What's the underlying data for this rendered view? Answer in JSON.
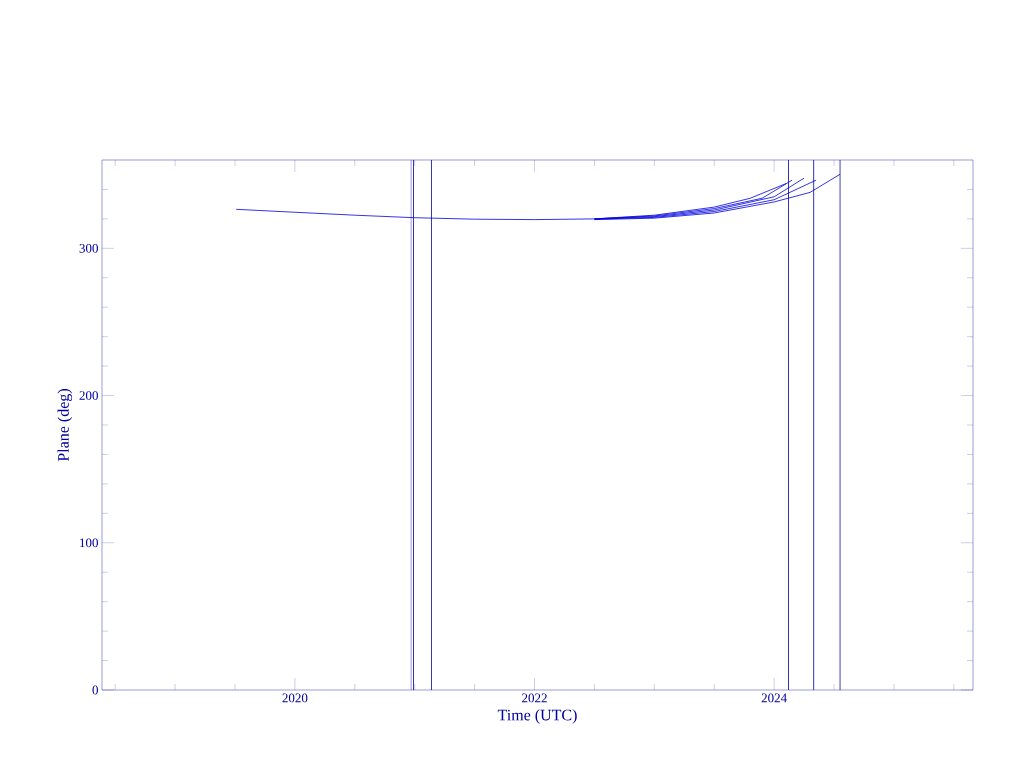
{
  "chart_data": {
    "type": "line",
    "xlabel": "Time (UTC)",
    "ylabel": "Plane (deg)",
    "xlim": [
      2018.39,
      2025.66
    ],
    "ylim": [
      0,
      360
    ],
    "xticks": [
      {
        "value": 2018.5,
        "label": null
      },
      {
        "value": 2019,
        "label": null
      },
      {
        "value": 2019.5,
        "label": null
      },
      2020,
      {
        "value": 2020.5,
        "label": null
      },
      {
        "value": 2021,
        "label": null
      },
      {
        "value": 2021.5,
        "label": null
      },
      2022,
      {
        "value": 2022.5,
        "label": null
      },
      {
        "value": 2023,
        "label": null
      },
      {
        "value": 2023.5,
        "label": null
      },
      2024,
      {
        "value": 2024.5,
        "label": null
      },
      {
        "value": 2025,
        "label": null
      },
      {
        "value": 2025.5,
        "label": null
      }
    ],
    "yticks": [
      0,
      {
        "value": 20,
        "label": null
      },
      {
        "value": 40,
        "label": null
      },
      {
        "value": 60,
        "label": null
      },
      {
        "value": 80,
        "label": null
      },
      100,
      {
        "value": 120,
        "label": null
      },
      {
        "value": 140,
        "label": null
      },
      {
        "value": 160,
        "label": null
      },
      {
        "value": 180,
        "label": null
      },
      200,
      {
        "value": 220,
        "label": null
      },
      {
        "value": 240,
        "label": null
      },
      {
        "value": 260,
        "label": null
      },
      {
        "value": 280,
        "label": null
      },
      300,
      {
        "value": 320,
        "label": null
      },
      {
        "value": 340,
        "label": null
      }
    ],
    "grid": false,
    "marker": "none",
    "line_style": "solid",
    "series": [
      {
        "color": "#0000e0",
        "x": [
          2019.51,
          2020,
          2020.5,
          2021,
          2021.5,
          2022,
          2022.5,
          2023,
          2023.5,
          2023.8,
          2024.1
        ],
        "values": [
          326.5,
          324.5,
          322.5,
          320.8,
          319.8,
          319.5,
          320,
          322.5,
          328,
          334,
          344
        ]
      },
      {
        "color": "#0000e0",
        "x": [
          2022.5,
          2023,
          2023.5,
          2023.9,
          2024.15
        ],
        "values": [
          320,
          322,
          327,
          334,
          346.3
        ]
      },
      {
        "color": "#0000e0",
        "x": [
          2022.5,
          2023,
          2023.5,
          2024,
          2024.25
        ],
        "values": [
          320,
          321.5,
          326,
          335,
          347.7
        ]
      },
      {
        "color": "#0000e0",
        "x": [
          2022.5,
          2023,
          2023.5,
          2024,
          2024.35
        ],
        "values": [
          319.8,
          321,
          325,
          333,
          346.3
        ]
      },
      {
        "color": "#0000e0",
        "x": [
          2022.5,
          2023,
          2023.5,
          2024,
          2024.3,
          2024.55
        ],
        "values": [
          319.5,
          320.5,
          324,
          331.5,
          338,
          350.3
        ]
      }
    ],
    "ref_lines": [
      {
        "axis": "x",
        "value": 2020.97,
        "color": "#0000a0"
      },
      {
        "axis": "x",
        "value": 2020.99,
        "color": "#0000a0"
      },
      {
        "axis": "x",
        "value": 2021.14,
        "color": "#0000a0"
      },
      {
        "axis": "x",
        "value": 2024.12,
        "color": "#0000a0"
      },
      {
        "axis": "x",
        "value": 2024.33,
        "color": "#0000a0"
      },
      {
        "axis": "x",
        "value": 2024.55,
        "color": "#0000a0"
      }
    ]
  }
}
